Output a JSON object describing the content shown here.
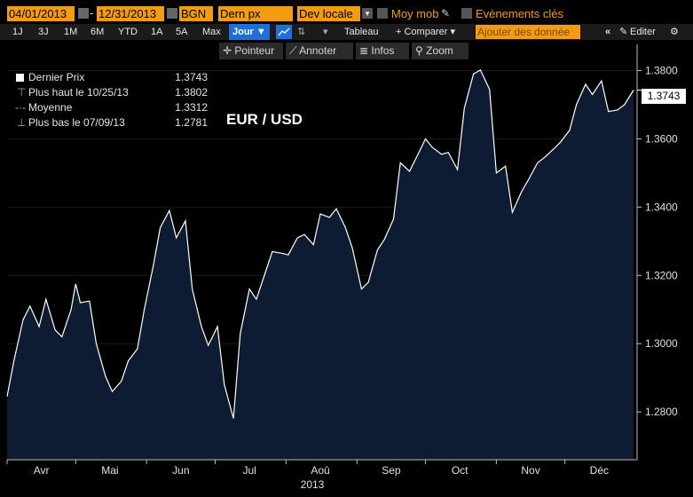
{
  "toolbar": {
    "start_date": "04/01/2013",
    "end_date": "12/31/2013",
    "source": "BGN",
    "field": "Dern px",
    "currency": "Dev locale",
    "moving_avg": "Moy mob",
    "events": "Evènements clés",
    "ranges": [
      "1J",
      "3J",
      "1M",
      "6M",
      "YTD",
      "1A",
      "5A",
      "Max"
    ],
    "period": "Jour ▼",
    "table": "Tableau",
    "compare": "+ Comparer ▾",
    "add_data_placeholder": "Ajouter des donnée",
    "edit": "Editer",
    "tools": [
      "Pointeur",
      "Annoter",
      "Infos",
      "Zoom"
    ]
  },
  "legend": {
    "rows": [
      {
        "label": "Dernier Prix",
        "value": "1.3743"
      },
      {
        "label": "Plus haut le 10/25/13",
        "value": "1.3802"
      },
      {
        "label": "Moyenne",
        "value": "1.3312"
      },
      {
        "label": "Plus bas le 07/09/13",
        "value": "1.2781"
      }
    ]
  },
  "colors": {
    "accent": "#f39c12",
    "area": "#0d1b33",
    "line": "#ffffff",
    "selected": "#1e6fd9"
  },
  "chart_data": {
    "type": "area",
    "title": "EUR / USD",
    "last_value_label": "1.3743",
    "x_tick_labels": [
      "Avr",
      "Mai",
      "Jun",
      "Jul",
      "Aoû",
      "Sep",
      "Oct",
      "Nov",
      "Déc"
    ],
    "x_year_label": "2013",
    "y_tick_labels": [
      "1.2800",
      "1.3000",
      "1.3200",
      "1.3400",
      "1.3600",
      "1.3800"
    ],
    "ylim": [
      1.266,
      1.383
    ],
    "x": [
      "2013-04-01",
      "2013-04-04",
      "2013-04-08",
      "2013-04-11",
      "2013-04-15",
      "2013-04-18",
      "2013-04-22",
      "2013-04-25",
      "2013-04-29",
      "2013-05-01",
      "2013-05-03",
      "2013-05-07",
      "2013-05-10",
      "2013-05-14",
      "2013-05-17",
      "2013-05-21",
      "2013-05-24",
      "2013-05-28",
      "2013-05-31",
      "2013-06-04",
      "2013-06-07",
      "2013-06-11",
      "2013-06-14",
      "2013-06-18",
      "2013-06-21",
      "2013-06-25",
      "2013-06-28",
      "2013-07-02",
      "2013-07-05",
      "2013-07-09",
      "2013-07-12",
      "2013-07-16",
      "2013-07-19",
      "2013-07-23",
      "2013-07-26",
      "2013-07-30",
      "2013-08-02",
      "2013-08-06",
      "2013-08-09",
      "2013-08-13",
      "2013-08-16",
      "2013-08-20",
      "2013-08-23",
      "2013-08-27",
      "2013-08-30",
      "2013-09-03",
      "2013-09-06",
      "2013-09-10",
      "2013-09-13",
      "2013-09-17",
      "2013-09-20",
      "2013-09-24",
      "2013-09-27",
      "2013-10-01",
      "2013-10-04",
      "2013-10-08",
      "2013-10-11",
      "2013-10-15",
      "2013-10-18",
      "2013-10-22",
      "2013-10-25",
      "2013-10-29",
      "2013-11-01",
      "2013-11-05",
      "2013-11-08",
      "2013-11-12",
      "2013-11-15",
      "2013-11-19",
      "2013-11-22",
      "2013-11-26",
      "2013-11-29",
      "2013-12-03",
      "2013-12-06",
      "2013-12-10",
      "2013-12-13",
      "2013-12-17",
      "2013-12-20",
      "2013-12-24",
      "2013-12-27",
      "2013-12-31"
    ],
    "values": [
      1.2845,
      1.295,
      1.307,
      1.311,
      1.305,
      1.313,
      1.304,
      1.302,
      1.31,
      1.3175,
      1.312,
      1.3125,
      1.3,
      1.2905,
      1.286,
      1.289,
      1.295,
      1.2985,
      1.31,
      1.323,
      1.334,
      1.339,
      1.331,
      1.336,
      1.316,
      1.305,
      1.2995,
      1.305,
      1.288,
      1.2781,
      1.303,
      1.316,
      1.313,
      1.321,
      1.327,
      1.3265,
      1.326,
      1.331,
      1.332,
      1.329,
      1.338,
      1.337,
      1.3395,
      1.334,
      1.328,
      1.316,
      1.318,
      1.3275,
      1.3305,
      1.3365,
      1.353,
      1.3505,
      1.3545,
      1.36,
      1.3575,
      1.3555,
      1.356,
      1.351,
      1.369,
      1.379,
      1.3802,
      1.3745,
      1.35,
      1.352,
      1.3385,
      1.3445,
      1.348,
      1.353,
      1.3545,
      1.357,
      1.359,
      1.3625,
      1.37,
      1.376,
      1.373,
      1.377,
      1.368,
      1.3685,
      1.37,
      1.3743
    ]
  }
}
